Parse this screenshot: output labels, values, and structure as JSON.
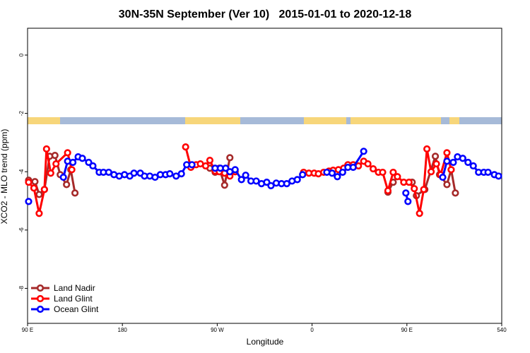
{
  "chart_data": {
    "type": "line",
    "title": "30N-35N September (Ver 10)   2015-01-01 to 2020-12-18",
    "xlabel": "Longitude",
    "ylabel": "XCO2 - MLO trend (ppm)",
    "xlim": [
      90,
      540
    ],
    "ylim": [
      -9.2,
      0.92
    ],
    "xticks": [
      {
        "value": 90,
        "label": "90 E"
      },
      180,
      {
        "value": 270,
        "label": "90 W"
      },
      {
        "value": 360,
        "label": "0"
      },
      {
        "value": 450,
        "label": "90 E"
      },
      540
    ],
    "yticks": [
      0,
      -2,
      -4,
      -6,
      -8
    ],
    "legend": "lower left",
    "series": [
      {
        "name": "Land Nadir",
        "color": "#a52a2a",
        "x": [
          91,
          97,
          101,
          106,
          111,
          116,
          121,
          127,
          131,
          135,
          200,
          263,
          268,
          272,
          277,
          282,
          350,
          432,
          437,
          445,
          455,
          459,
          467,
          477,
          481,
          488,
          492,
          496
        ],
        "values": [
          -4.29,
          -4.34,
          -4.78,
          -4.61,
          -3.47,
          -3.44,
          -4.1,
          -4.44,
          -3.93,
          -4.73,
          null,
          -3.88,
          -4.02,
          -3.88,
          -4.46,
          -3.52,
          null,
          -4.7,
          -4.36,
          null,
          -4.36,
          -4.82,
          -4.61,
          -3.47,
          -4.1,
          -4.44,
          -3.93,
          -4.73
        ]
      },
      {
        "name": "Land Glint",
        "color": "#ff0000",
        "x": [
          91,
          96,
          101,
          106,
          108,
          112,
          117,
          128,
          132,
          190,
          240,
          245,
          250,
          254,
          259,
          263,
          268,
          272,
          277,
          282,
          287,
          320,
          352,
          357,
          362,
          366,
          371,
          376,
          380,
          385,
          390,
          394,
          399,
          404,
          409,
          413,
          418,
          423,
          427,
          432,
          437,
          441,
          447,
          452,
          457,
          462,
          466,
          469,
          473,
          478,
          482,
          488,
          492
        ],
        "values": [
          -4.36,
          -4.56,
          -5.43,
          -4.61,
          -3.22,
          -4.05,
          -3.73,
          -3.35,
          -3.93,
          null,
          -3.15,
          -3.85,
          -3.76,
          -3.73,
          -3.8,
          -3.61,
          -3.98,
          -4.0,
          -4.05,
          -4.15,
          -4.0,
          null,
          -4.02,
          -4.05,
          -4.05,
          -4.07,
          -4.02,
          -3.98,
          -3.95,
          -3.93,
          -3.88,
          -3.76,
          -3.76,
          -3.8,
          -3.64,
          -3.73,
          -3.9,
          -4.02,
          -4.02,
          -4.65,
          -4.02,
          -4.17,
          -4.36,
          -4.36,
          -4.58,
          -5.43,
          -4.61,
          -3.22,
          -4.0,
          -3.73,
          -4.1,
          -3.35,
          -3.93
        ]
      },
      {
        "name": "Ocean Glint",
        "color": "#0000ff",
        "x": [
          91,
          110,
          124,
          128,
          133,
          138,
          142,
          148,
          152,
          158,
          162,
          167,
          172,
          177,
          182,
          187,
          191,
          197,
          201,
          206,
          211,
          216,
          221,
          225,
          231,
          236,
          241,
          246,
          257,
          268,
          273,
          278,
          282,
          287,
          293,
          297,
          302,
          307,
          312,
          317,
          321,
          326,
          331,
          336,
          341,
          346,
          351,
          362,
          374,
          379,
          384,
          389,
          394,
          399,
          409,
          430,
          449,
          451,
          470,
          484,
          488,
          494,
          498,
          503,
          508,
          513,
          518,
          523,
          527,
          533,
          537
        ],
        "values": [
          -5.02,
          null,
          -4.19,
          -3.64,
          -3.68,
          -3.49,
          -3.54,
          -3.68,
          -3.8,
          -4.02,
          -4.02,
          -4.02,
          -4.1,
          -4.15,
          -4.1,
          -4.15,
          -4.05,
          -4.05,
          -4.15,
          -4.15,
          -4.19,
          -4.1,
          -4.1,
          -4.07,
          -4.15,
          -4.07,
          -3.76,
          -3.76,
          null,
          -3.88,
          -3.88,
          -3.88,
          -4.0,
          -3.93,
          -4.27,
          -4.12,
          -4.32,
          -4.32,
          -4.41,
          -4.36,
          -4.48,
          -4.39,
          -4.41,
          -4.41,
          -4.32,
          -4.27,
          -4.1,
          null,
          -4.02,
          -4.05,
          -4.17,
          -4.02,
          -3.85,
          -3.85,
          -3.3,
          null,
          -4.73,
          -5.02,
          null,
          -4.19,
          -3.64,
          -3.68,
          -3.49,
          -3.54,
          -3.68,
          -3.8,
          -4.02,
          -4.02,
          -4.02,
          -4.1,
          -4.15
        ]
      }
    ]
  }
}
